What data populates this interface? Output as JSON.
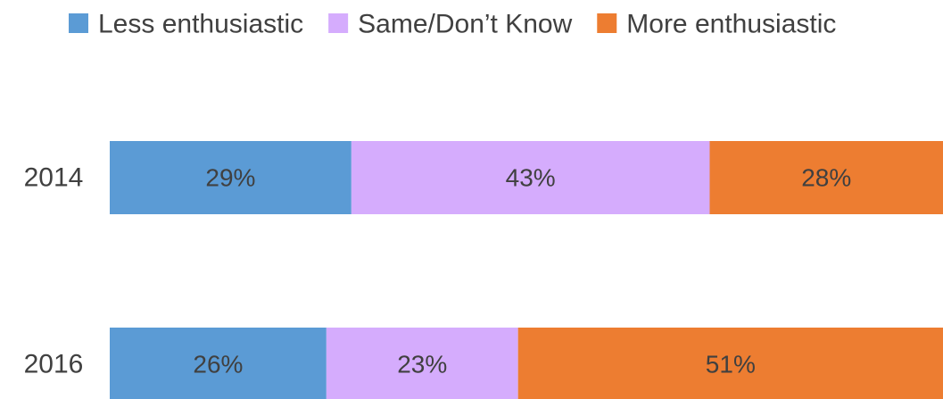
{
  "chart_data": {
    "type": "stacked-bar-horizontal",
    "categories": [
      "2014",
      "2016"
    ],
    "series": [
      {
        "name": "Less enthusiastic",
        "color": "#5b9bd5",
        "values": [
          29,
          26
        ],
        "value_labels": [
          "29%",
          "26%"
        ]
      },
      {
        "name": "Same/Don’t Know",
        "color": "#d5acfd",
        "values": [
          43,
          23
        ],
        "value_labels": [
          "43%",
          "23%"
        ]
      },
      {
        "name": "More enthusiastic",
        "color": "#ed7d31",
        "values": [
          28,
          51
        ],
        "value_labels": [
          "28%",
          "51%"
        ]
      }
    ],
    "xlim": [
      0,
      100
    ],
    "legend": "top"
  }
}
